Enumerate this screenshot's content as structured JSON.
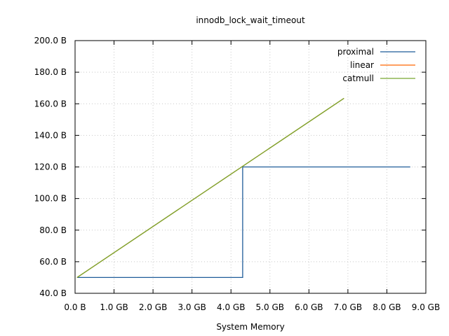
{
  "chart_data": {
    "type": "line",
    "title": "innodb_lock_wait_timeout",
    "xlabel": "System Memory",
    "ylabel": "",
    "xlim": [
      0,
      9
    ],
    "ylim": [
      40,
      200
    ],
    "x_unit": "GB",
    "y_unit": "B",
    "grid": true,
    "legend_position": "top-right",
    "x_ticks": [
      {
        "value": 0,
        "label": "0.0  B"
      },
      {
        "value": 1,
        "label": "1.0 GB"
      },
      {
        "value": 2,
        "label": "2.0 GB"
      },
      {
        "value": 3,
        "label": "3.0 GB"
      },
      {
        "value": 4,
        "label": "4.0 GB"
      },
      {
        "value": 5,
        "label": "5.0 GB"
      },
      {
        "value": 6,
        "label": "6.0 GB"
      },
      {
        "value": 7,
        "label": "7.0 GB"
      },
      {
        "value": 8,
        "label": "8.0 GB"
      },
      {
        "value": 9,
        "label": "9.0 GB"
      }
    ],
    "y_ticks": [
      {
        "value": 40,
        "label": "40.0  B"
      },
      {
        "value": 60,
        "label": "60.0  B"
      },
      {
        "value": 80,
        "label": "80.0  B"
      },
      {
        "value": 100,
        "label": "100.0  B"
      },
      {
        "value": 120,
        "label": "120.0  B"
      },
      {
        "value": 140,
        "label": "140.0  B"
      },
      {
        "value": 160,
        "label": "160.0  B"
      },
      {
        "value": 180,
        "label": "180.0  B"
      },
      {
        "value": 200,
        "label": "200.0  B"
      }
    ],
    "series": [
      {
        "name": "proximal",
        "color": "#1f5c99",
        "points": [
          [
            0.05,
            50
          ],
          [
            4.3,
            50
          ],
          [
            4.3,
            120
          ],
          [
            8.6,
            120
          ]
        ]
      },
      {
        "name": "linear",
        "color": "#ff6600",
        "points": [
          [
            0.05,
            50
          ],
          [
            6.9,
            163.5
          ]
        ]
      },
      {
        "name": "catmull",
        "color": "#77a832",
        "points": [
          [
            0.05,
            50
          ],
          [
            6.9,
            163.5
          ]
        ]
      }
    ]
  }
}
